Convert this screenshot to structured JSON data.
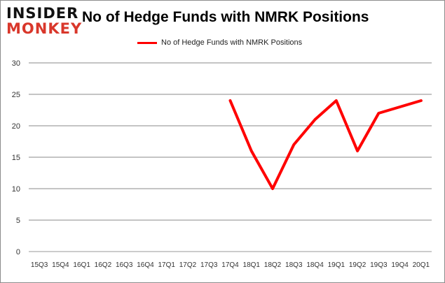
{
  "logo": {
    "line1": "INSIDER",
    "line2": "MONKEY"
  },
  "chart_data": {
    "type": "line",
    "title": "No of Hedge Funds with NMRK Positions",
    "xlabel": "",
    "ylabel": "",
    "categories": [
      "15Q3",
      "15Q4",
      "16Q1",
      "16Q2",
      "16Q3",
      "16Q4",
      "17Q1",
      "17Q2",
      "17Q3",
      "17Q4",
      "18Q1",
      "18Q2",
      "18Q3",
      "18Q4",
      "19Q1",
      "19Q2",
      "19Q3",
      "19Q4",
      "20Q1"
    ],
    "series": [
      {
        "name": "No of Hedge Funds with NMRK Positions",
        "color": "#ff0000",
        "values": [
          null,
          null,
          null,
          null,
          null,
          null,
          null,
          null,
          null,
          24,
          16,
          10,
          17,
          21,
          24,
          16,
          22,
          23,
          24
        ]
      }
    ],
    "ylim": [
      0,
      30
    ],
    "yticks": [
      0,
      5,
      10,
      15,
      20,
      25,
      30
    ],
    "grid": true,
    "legend": "top-center"
  }
}
